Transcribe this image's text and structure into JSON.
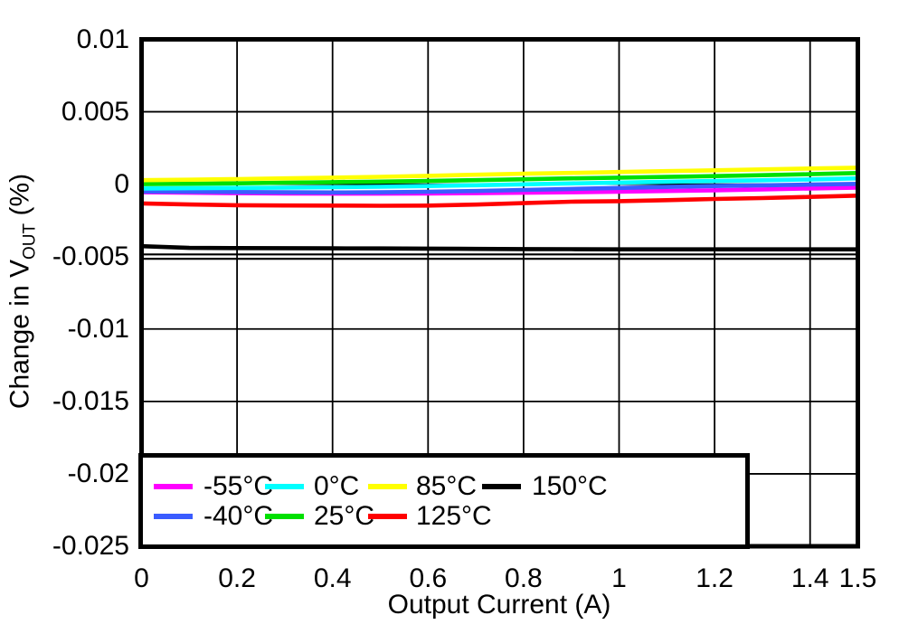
{
  "chart_data": {
    "type": "line",
    "title": "",
    "xlabel": "Output Current (A)",
    "ylabel": "Change in VOUT (%)",
    "ylabel_parts": {
      "main": "Change in V",
      "sub": "OUT",
      "suffix": " (%)"
    },
    "xlim": [
      0,
      1.5
    ],
    "ylim": [
      -0.025,
      0.01
    ],
    "grid": true,
    "legend_position": "inside-bottom-left",
    "x_ticks": {
      "values": [
        0,
        0.2,
        0.4,
        0.6,
        0.8,
        1,
        1.2,
        1.4,
        1.5
      ],
      "labels": [
        "0",
        "0.2",
        "0.4",
        "0.6",
        "0.8",
        "1",
        "1.2",
        "1.4",
        "1.5"
      ]
    },
    "y_ticks": {
      "values": [
        0.01,
        0.005,
        0,
        -0.005,
        -0.01,
        -0.015,
        -0.02,
        -0.025
      ],
      "labels": [
        "0.01",
        "0.005",
        "0",
        "-0.005",
        "-0.01",
        "-0.015",
        "-0.02",
        "-0.025"
      ]
    },
    "gridlines_x": [
      0.2,
      0.4,
      0.6,
      0.8,
      1,
      1.2,
      1.4
    ],
    "gridlines_y": [
      0.005,
      0,
      -0.01,
      -0.015,
      -0.02
    ],
    "extra_gridlines_y": [
      -0.00485,
      -0.00515
    ],
    "x": [
      0,
      0.1,
      0.2,
      0.3,
      0.4,
      0.5,
      0.6,
      0.7,
      0.8,
      0.9,
      1.0,
      1.1,
      1.2,
      1.3,
      1.4,
      1.5
    ],
    "series": [
      {
        "name": "-55°C",
        "color": "#FF00FF",
        "legend_col": 0,
        "legend_row": 0,
        "values": [
          -0.00056,
          -0.00059,
          -0.00062,
          -0.00064,
          -0.00065,
          -0.00065,
          -0.00064,
          -0.00062,
          -0.00059,
          -0.00056,
          -0.00052,
          -0.00047,
          -0.00042,
          -0.00036,
          -0.0003,
          -0.00024
        ]
      },
      {
        "name": "-40°C",
        "color": "#3A5CFF",
        "legend_col": 0,
        "legend_row": 1,
        "values": [
          -0.0005,
          -0.00052,
          -0.00054,
          -0.00056,
          -0.00057,
          -0.00056,
          -0.00052,
          -0.00047,
          -0.0004,
          -0.00033,
          -0.00026,
          -0.00019,
          -0.00013,
          -8e-05,
          -3e-05,
          2e-05
        ]
      },
      {
        "name": "0°C",
        "color": "#00FFFF",
        "legend_col": 1,
        "legend_row": 0,
        "values": [
          -0.0003,
          -0.00028,
          -0.00026,
          -0.00024,
          -0.00021,
          -0.00018,
          -0.00013,
          -7e-05,
          -1e-05,
          5e-05,
          0.00011,
          0.00017,
          0.00022,
          0.00027,
          0.00033,
          0.0004
        ]
      },
      {
        "name": "25°C",
        "color": "#00E000",
        "legend_col": 1,
        "legend_row": 1,
        "values": [
          0.0,
          3e-05,
          6e-05,
          0.0001,
          0.00014,
          0.00018,
          0.00023,
          0.00028,
          0.00034,
          0.0004,
          0.00045,
          0.0005,
          0.00056,
          0.00062,
          0.00069,
          0.00077
        ]
      },
      {
        "name": "85°C",
        "color": "#FFFF00",
        "legend_col": 2,
        "legend_row": 0,
        "values": [
          0.00028,
          0.00031,
          0.00035,
          0.0004,
          0.00045,
          0.00051,
          0.00058,
          0.00065,
          0.00072,
          0.00078,
          0.00084,
          0.0009,
          0.00096,
          0.00102,
          0.00108,
          0.00114
        ]
      },
      {
        "name": "125°C",
        "color": "#FF0000",
        "legend_col": 2,
        "legend_row": 1,
        "values": [
          -0.00133,
          -0.0014,
          -0.00145,
          -0.00147,
          -0.00148,
          -0.00149,
          -0.00148,
          -0.00141,
          -0.00131,
          -0.00121,
          -0.00117,
          -0.0011,
          -0.00102,
          -0.00096,
          -0.00088,
          -0.00079
        ]
      },
      {
        "name": "150°C",
        "color": "#000000",
        "legend_col": 3,
        "legend_row": 0,
        "values": [
          -0.00428,
          -0.0044,
          -0.00441,
          -0.00442,
          -0.00443,
          -0.00444,
          -0.00445,
          -0.00447,
          -0.00448,
          -0.00449,
          -0.0045,
          -0.0045,
          -0.0045,
          -0.0045,
          -0.0045,
          -0.0045
        ]
      }
    ]
  }
}
